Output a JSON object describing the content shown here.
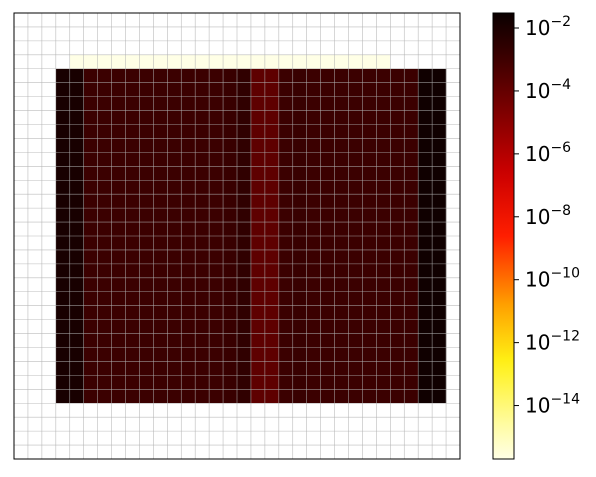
{
  "chart_data": {
    "type": "heatmap",
    "title": "",
    "xlabel": "",
    "ylabel": "",
    "x_ticks_shown": false,
    "y_ticks_shown": false,
    "grid": true,
    "grid_cells": {
      "columns": 32,
      "rows": 32
    },
    "domain_columns": {
      "start": 3,
      "end": 27
    },
    "domain_rows": {
      "start": 4,
      "end": 28
    },
    "top_strip_value": 2e-16,
    "column_values": [
      0.012,
      0.012,
      0.0012,
      0.0012,
      0.0012,
      0.0012,
      0.0012,
      0.0012,
      0.0012,
      0.0012,
      0.0012,
      0.0012,
      0.0015,
      0.0025,
      0.00015,
      0.00015,
      0.0012,
      0.0015,
      0.0012,
      0.0012,
      0.0012,
      0.0012,
      0.0012,
      0.0012,
      0.0012,
      0.0012,
      0.02,
      0.02
    ],
    "colorbar": {
      "scale": "log",
      "colormap": "hot_r",
      "range": [
        2e-16,
        0.03
      ],
      "ticks": [
        {
          "value": 0.01,
          "base": "10",
          "exponent": "−2"
        },
        {
          "value": 0.0001,
          "base": "10",
          "exponent": "−4"
        },
        {
          "value": 1e-06,
          "base": "10",
          "exponent": "−6"
        },
        {
          "value": 1e-08,
          "base": "10",
          "exponent": "−8"
        },
        {
          "value": 1e-10,
          "base": "10",
          "exponent": "−10"
        },
        {
          "value": 1e-12,
          "base": "10",
          "exponent": "−12"
        },
        {
          "value": 1e-14,
          "base": "10",
          "exponent": "−14"
        }
      ]
    }
  }
}
